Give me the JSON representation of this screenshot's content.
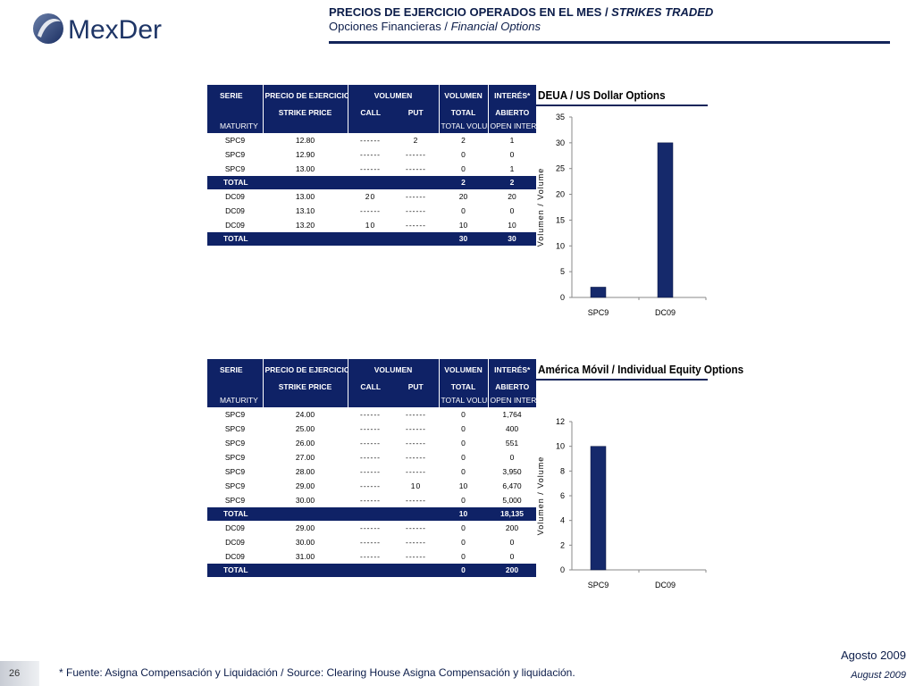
{
  "logo": {
    "text": "MexDer"
  },
  "header": {
    "title_es": "PRECIOS DE EJERCICIO OPERADOS EN EL MES",
    "sep": " / ",
    "title_en": "STRIKES TRADED",
    "subtitle_es": "Opciones Financieras",
    "subtitle_en": "Financial Options"
  },
  "table_headers": {
    "serie": "SERIE",
    "maturity": "MATURITY",
    "precio": "PRECIO DE EJERCICIO",
    "strike": "STRIKE PRICE",
    "volumen": "VOLUMEN",
    "call": "CALL",
    "put": "PUT",
    "volumen2": "VOLUMEN",
    "total": "TOTAL",
    "total_volume": "TOTAL VOLUME",
    "interes": "INTERÉS*",
    "abierto": "ABIERTO",
    "open_interest": "OPEN INTEREST"
  },
  "tables": [
    {
      "rows": [
        {
          "type": "row",
          "serie": "SPC9",
          "strike": "12.80",
          "call": "------",
          "put": "2",
          "vol": "2",
          "oi": "1"
        },
        {
          "type": "row",
          "serie": "SPC9",
          "strike": "12.90",
          "call": "------",
          "put": "------",
          "vol": "0",
          "oi": "0"
        },
        {
          "type": "row",
          "serie": "SPC9",
          "strike": "13.00",
          "call": "------",
          "put": "------",
          "vol": "0",
          "oi": "1"
        },
        {
          "type": "total",
          "label": "TOTAL",
          "vol": "2",
          "oi": "2"
        },
        {
          "type": "row",
          "serie": "DC09",
          "strike": "13.00",
          "call": "20",
          "put": "------",
          "vol": "20",
          "oi": "20"
        },
        {
          "type": "row",
          "serie": "DC09",
          "strike": "13.10",
          "call": "------",
          "put": "------",
          "vol": "0",
          "oi": "0"
        },
        {
          "type": "row",
          "serie": "DC09",
          "strike": "13.20",
          "call": "10",
          "put": "------",
          "vol": "10",
          "oi": "10"
        },
        {
          "type": "total",
          "label": "TOTAL",
          "vol": "30",
          "oi": "30"
        }
      ]
    },
    {
      "rows": [
        {
          "type": "row",
          "serie": "SPC9",
          "strike": "24.00",
          "call": "------",
          "put": "------",
          "vol": "0",
          "oi": "1,764"
        },
        {
          "type": "row",
          "serie": "SPC9",
          "strike": "25.00",
          "call": "------",
          "put": "------",
          "vol": "0",
          "oi": "400"
        },
        {
          "type": "row",
          "serie": "SPC9",
          "strike": "26.00",
          "call": "------",
          "put": "------",
          "vol": "0",
          "oi": "551"
        },
        {
          "type": "row",
          "serie": "SPC9",
          "strike": "27.00",
          "call": "------",
          "put": "------",
          "vol": "0",
          "oi": "0"
        },
        {
          "type": "row",
          "serie": "SPC9",
          "strike": "28.00",
          "call": "------",
          "put": "------",
          "vol": "0",
          "oi": "3,950"
        },
        {
          "type": "row",
          "serie": "SPC9",
          "strike": "29.00",
          "call": "------",
          "put": "10",
          "vol": "10",
          "oi": "6,470"
        },
        {
          "type": "row",
          "serie": "SPC9",
          "strike": "30.00",
          "call": "------",
          "put": "------",
          "vol": "0",
          "oi": "5,000"
        },
        {
          "type": "total",
          "label": "TOTAL",
          "vol": "10",
          "oi": "18,135"
        },
        {
          "type": "row",
          "serie": "DC09",
          "strike": "29.00",
          "call": "------",
          "put": "------",
          "vol": "0",
          "oi": "200"
        },
        {
          "type": "row",
          "serie": "DC09",
          "strike": "30.00",
          "call": "------",
          "put": "------",
          "vol": "0",
          "oi": "0"
        },
        {
          "type": "row",
          "serie": "DC09",
          "strike": "31.00",
          "call": "------",
          "put": "------",
          "vol": "0",
          "oi": "0"
        },
        {
          "type": "total",
          "label": "TOTAL",
          "vol": "0",
          "oi": "200"
        }
      ]
    }
  ],
  "chart_data": [
    {
      "type": "bar",
      "title": "DEUA / US Dollar Options",
      "ylabel": "Volumen / Volume",
      "xlabel": "",
      "categories": [
        "SPC9",
        "DC09"
      ],
      "values": [
        2,
        30
      ],
      "ylim": [
        0,
        35
      ],
      "yticks": [
        0,
        5,
        10,
        15,
        20,
        25,
        30,
        35
      ],
      "bar_color": "#15296b",
      "grid": false,
      "legend": "none"
    },
    {
      "type": "bar",
      "title": "América Móvil / Individual Equity Options",
      "ylabel": "Volumen / Volume",
      "xlabel": "",
      "categories": [
        "SPC9",
        "DC09"
      ],
      "values": [
        10,
        0
      ],
      "ylim": [
        0,
        12
      ],
      "yticks": [
        0,
        2,
        4,
        6,
        8,
        10,
        12
      ],
      "bar_color": "#15296b",
      "grid": false,
      "legend": "none"
    }
  ],
  "footer": {
    "page": "26",
    "source": "* Fuente: Asigna Compensación y Liquidación / Source: Clearing House Asigna Compensación y liquidación.",
    "date_es": "Agosto 2009",
    "date_en": "August 2009"
  }
}
